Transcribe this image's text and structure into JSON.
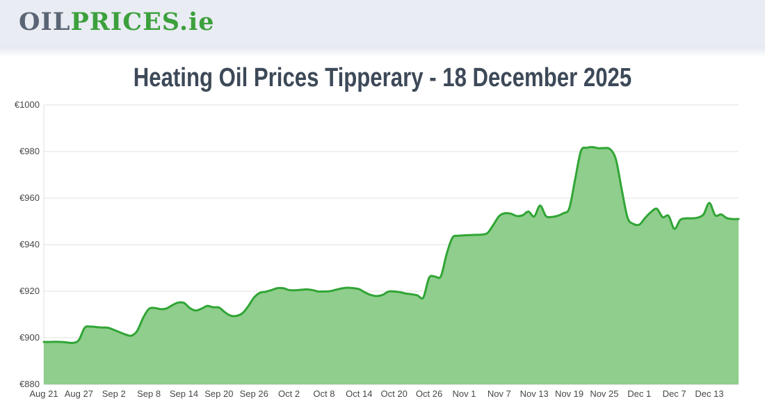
{
  "header": {
    "background": "#e9ecf3",
    "logo": {
      "part1": "OIL",
      "part2": "PRICES",
      "part3": ".ie",
      "part1_color": "#5a6474",
      "accent_color": "#3ca03c"
    }
  },
  "title": {
    "text": "Heating Oil Prices Tipperary - 18 December 2025",
    "color": "#3d4958"
  },
  "chart_data": {
    "type": "area",
    "title": "Heating Oil Prices Tipperary - 18 December 2025",
    "currency": "EUR",
    "start_date": "Aug 21",
    "end_date": "Dec 18",
    "interval": "daily",
    "ylim": [
      880,
      1000
    ],
    "y_tick_labels": [
      "€880",
      "€900",
      "€920",
      "€940",
      "€960",
      "€980",
      "€1000"
    ],
    "x_tick_labels": [
      "Aug 21",
      "Aug 27",
      "Sep 2",
      "Sep 8",
      "Sep 14",
      "Sep 20",
      "Sep 26",
      "Oct 2",
      "Oct 8",
      "Oct 14",
      "Oct 20",
      "Oct 26",
      "Nov 1",
      "Nov 7",
      "Nov 13",
      "Nov 19",
      "Nov 25",
      "Dec 1",
      "Dec 7",
      "Dec 13"
    ],
    "x_tick_interval_days": 6,
    "grid": true,
    "legend": "none",
    "values": [
      898.2,
      898.2,
      898.3,
      898.2,
      898.0,
      897.8,
      899.0,
      904.3,
      904.8,
      904.6,
      904.4,
      904.3,
      903.4,
      902.4,
      901.4,
      900.9,
      903.0,
      908.5,
      912.4,
      912.8,
      912.3,
      912.6,
      914.0,
      915.1,
      915.0,
      912.8,
      911.7,
      912.5,
      913.7,
      913.1,
      913.0,
      911.0,
      909.5,
      909.4,
      910.5,
      913.5,
      917.3,
      919.3,
      919.8,
      920.5,
      921.3,
      921.3,
      920.5,
      920.4,
      920.6,
      920.8,
      920.5,
      919.9,
      919.9,
      920.0,
      920.6,
      921.2,
      921.5,
      921.3,
      920.9,
      919.5,
      918.4,
      917.9,
      918.4,
      919.8,
      919.9,
      919.6,
      919.0,
      918.7,
      918.2,
      917.3,
      925.8,
      926.3,
      926.4,
      936.0,
      943.0,
      943.8,
      944.0,
      944.1,
      944.2,
      944.3,
      945.0,
      948.5,
      952.3,
      953.5,
      953.3,
      952.3,
      952.6,
      954.2,
      952.1,
      956.8,
      952.3,
      951.9,
      952.4,
      953.5,
      955.6,
      968.0,
      980.2,
      981.6,
      981.9,
      981.4,
      981.5,
      981.0,
      976.5,
      963.5,
      951.5,
      948.9,
      948.6,
      951.5,
      954.0,
      955.4,
      951.8,
      952.4,
      946.8,
      950.6,
      951.3,
      951.3,
      951.6,
      953.0,
      957.9,
      952.6,
      953.0,
      951.4,
      951.0,
      951.0
    ]
  },
  "chart_style": {
    "line_color": "#30a535",
    "fill_color": "#8fce8c",
    "grid_color": "#e0e0e0",
    "baseline_color": "#cccccc",
    "axis_text_color": "#474747"
  }
}
